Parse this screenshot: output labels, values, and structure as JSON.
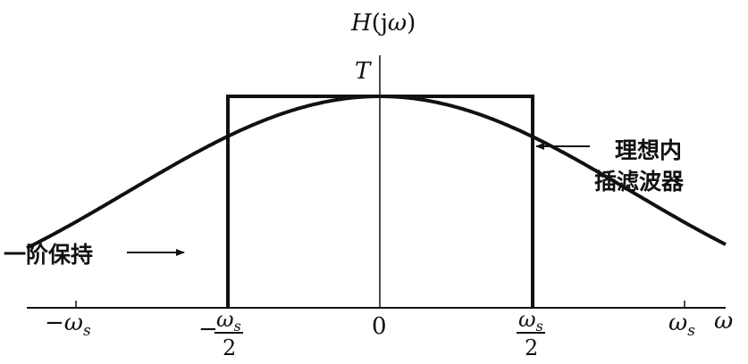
{
  "axis": {
    "y_label": "H(jω)",
    "y_label_func": "H",
    "y_label_arg_open": "(j",
    "y_label_arg_omega": "ω",
    "y_label_arg_close": ")",
    "x_label": "ω",
    "peak_label": "T"
  },
  "ticks": {
    "neg_ws": {
      "sign": "−",
      "sym": "ω",
      "sub": "s"
    },
    "neg_ws_half": {
      "sign": "−",
      "sym": "ω",
      "sub": "s",
      "den": "2"
    },
    "zero": "0",
    "pos_ws_half": {
      "sym": "ω",
      "sub": "s",
      "den": "2"
    },
    "pos_ws": {
      "sym": "ω",
      "sub": "s"
    }
  },
  "annotations": {
    "ideal_filter_line1": "理想内",
    "ideal_filter_line2": "插滤波器",
    "zoh": "一阶保持"
  },
  "colors": {
    "ink": "#111111",
    "background": "#ffffff"
  }
}
